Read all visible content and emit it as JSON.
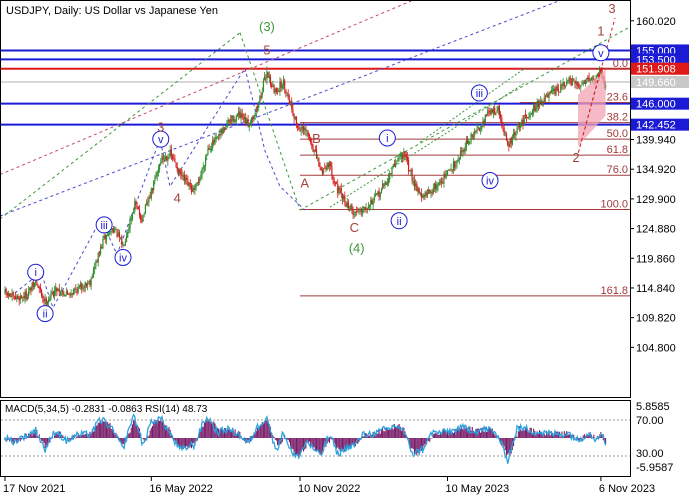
{
  "header": {
    "title": "USDJPY, Daily:  US Dollar vs Japanese Yen"
  },
  "chart_data": {
    "type": "candlestick",
    "symbol": "USDJPY",
    "timeframe": "Daily",
    "title": "USDJPY, Daily:  US Dollar vs Japanese Yen",
    "ylim": [
      100.0,
      162.0
    ],
    "y_ticks": [
      "160.020",
      "155.000",
      "153.500",
      "151.908",
      "149.660",
      "146.000",
      "142.452",
      "139.940",
      "134.920",
      "129.900",
      "124.880",
      "119.860",
      "114.840",
      "109.820",
      "104.800"
    ],
    "x_ticks": [
      "17 Nov 2021",
      "16 May 2022",
      "10 Nov 2022",
      "10 May 2023",
      "6 Nov 2023"
    ],
    "x_tick_idx": [
      0,
      124,
      250,
      375,
      505
    ],
    "n_bars": 510,
    "price_path": [
      [
        0,
        114.0
      ],
      [
        8,
        113.0
      ],
      [
        18,
        113.6
      ],
      [
        26,
        115.8
      ],
      [
        34,
        112.5
      ],
      [
        44,
        114.8
      ],
      [
        52,
        113.8
      ],
      [
        60,
        114.5
      ],
      [
        72,
        116.0
      ],
      [
        84,
        123.2
      ],
      [
        92,
        125.0
      ],
      [
        100,
        122.0
      ],
      [
        110,
        129.0
      ],
      [
        116,
        126.5
      ],
      [
        124,
        131.0
      ],
      [
        132,
        136.5
      ],
      [
        140,
        137.5
      ],
      [
        150,
        133.5
      ],
      [
        160,
        131.0
      ],
      [
        166,
        134.0
      ],
      [
        172,
        138.5
      ],
      [
        180,
        140.0
      ],
      [
        190,
        143.0
      ],
      [
        198,
        144.0
      ],
      [
        206,
        142.5
      ],
      [
        214,
        145.5
      ],
      [
        222,
        151.5
      ],
      [
        228,
        148.0
      ],
      [
        236,
        149.5
      ],
      [
        242,
        146.0
      ],
      [
        248,
        142.0
      ],
      [
        256,
        141.0
      ],
      [
        262,
        138.0
      ],
      [
        268,
        134.5
      ],
      [
        274,
        136.0
      ],
      [
        282,
        131.5
      ],
      [
        288,
        129.5
      ],
      [
        296,
        127.5
      ],
      [
        304,
        128.5
      ],
      [
        314,
        130.0
      ],
      [
        324,
        133.0
      ],
      [
        332,
        136.5
      ],
      [
        338,
        137.5
      ],
      [
        346,
        133.0
      ],
      [
        354,
        130.0
      ],
      [
        362,
        131.5
      ],
      [
        370,
        133.0
      ],
      [
        380,
        135.5
      ],
      [
        390,
        139.0
      ],
      [
        400,
        141.5
      ],
      [
        410,
        144.5
      ],
      [
        418,
        145.0
      ],
      [
        426,
        138.8
      ],
      [
        434,
        141.5
      ],
      [
        442,
        144.0
      ],
      [
        452,
        146.0
      ],
      [
        462,
        147.5
      ],
      [
        470,
        148.5
      ],
      [
        478,
        149.8
      ],
      [
        486,
        149.0
      ],
      [
        494,
        150.5
      ],
      [
        500,
        150.0
      ],
      [
        505,
        151.9
      ],
      [
        509,
        148.5
      ]
    ],
    "levels": [
      {
        "label": "155.000",
        "price": 155.0,
        "color": "#1b1bd6",
        "kind": "support-resistance"
      },
      {
        "label": "153.500",
        "price": 153.5,
        "color": "#1b1bd6",
        "kind": "support-resistance"
      },
      {
        "label": "151.908",
        "price": 151.908,
        "color": "#e01818",
        "kind": "high"
      },
      {
        "label": "149.660",
        "price": 149.66,
        "color": "#b0b0b0",
        "kind": "current"
      },
      {
        "label": "146.000",
        "price": 146.0,
        "color": "#1b1bd6",
        "kind": "support-resistance"
      },
      {
        "label": "142.452",
        "price": 142.452,
        "color": "#1b1bd6",
        "kind": "support-resistance"
      }
    ],
    "fibonacci": [
      {
        "label": "0.0",
        "price": 151.9
      },
      {
        "label": "23.6",
        "price": 146.2
      },
      {
        "label": "38.2",
        "price": 142.8
      },
      {
        "label": "50.0",
        "price": 140.0
      },
      {
        "label": "61.8",
        "price": 137.3
      },
      {
        "label": "76.0",
        "price": 133.9
      },
      {
        "label": "100.0",
        "price": 128.1
      },
      {
        "label": "161.8",
        "price": 113.5
      }
    ],
    "wave_labels": [
      {
        "text": "i",
        "circled": true,
        "color": "#1b1bd6",
        "idx": 26,
        "price": 117.5
      },
      {
        "text": "ii",
        "circled": true,
        "color": "#1b1bd6",
        "idx": 34,
        "price": 110.5
      },
      {
        "text": "iii",
        "circled": true,
        "color": "#1b1bd6",
        "idx": 84,
        "price": 125.5
      },
      {
        "text": "iv",
        "circled": true,
        "color": "#1b1bd6",
        "idx": 100,
        "price": 120.0
      },
      {
        "text": "v",
        "circled": true,
        "color": "#1b1bd6",
        "idx": 132,
        "price": 140.0
      },
      {
        "text": "3",
        "circled": false,
        "color": "#a0443c",
        "idx": 132,
        "price": 142.0
      },
      {
        "text": "4",
        "circled": false,
        "color": "#a0443c",
        "idx": 146,
        "price": 130.0
      },
      {
        "text": "5",
        "circled": false,
        "color": "#a0443c",
        "idx": 222,
        "price": 155.0
      },
      {
        "text": "(3)",
        "circled": false,
        "color": "#3c9a3c",
        "idx": 222,
        "price": 159.0
      },
      {
        "text": "B",
        "circled": false,
        "color": "#a0443c",
        "idx": 264,
        "price": 140.0
      },
      {
        "text": "A",
        "circled": false,
        "color": "#a0443c",
        "idx": 254,
        "price": 132.5
      },
      {
        "text": "C",
        "circled": false,
        "color": "#a0443c",
        "idx": 296,
        "price": 125.0
      },
      {
        "text": "(4)",
        "circled": false,
        "color": "#3c9a3c",
        "idx": 298,
        "price": 121.5
      },
      {
        "text": "i",
        "circled": true,
        "color": "#1b1bd6",
        "idx": 324,
        "price": 140.2
      },
      {
        "text": "ii",
        "circled": true,
        "color": "#1b1bd6",
        "idx": 334,
        "price": 126.2
      },
      {
        "text": "iii",
        "circled": true,
        "color": "#1b1bd6",
        "idx": 402,
        "price": 147.8
      },
      {
        "text": "iv",
        "circled": true,
        "color": "#1b1bd6",
        "idx": 411,
        "price": 133.0
      },
      {
        "text": "v",
        "circled": true,
        "color": "#1b1bd6",
        "idx": 505,
        "price": 154.6
      },
      {
        "text": "1",
        "circled": false,
        "color": "#a0443c",
        "idx": 505,
        "price": 158.2
      },
      {
        "text": "2",
        "circled": false,
        "color": "#a0443c",
        "idx": 556,
        "price": 136.8
      },
      {
        "text": "3",
        "circled": false,
        "color": "#a0443c",
        "idx": 604,
        "price": 162.0
      }
    ],
    "macd": {
      "label": "MACD(5,34,5) -0.2831 -0.0863 RSI(14) 48.73",
      "macd_params": "5,34,5",
      "macd_main": -0.2831,
      "macd_signal": -0.0863,
      "rsi_period": 14,
      "rsi_value": 48.73,
      "scale_left": [
        "5.8585",
        "-5.9587"
      ],
      "scale_right": [
        "70.00",
        "30.00"
      ]
    }
  }
}
